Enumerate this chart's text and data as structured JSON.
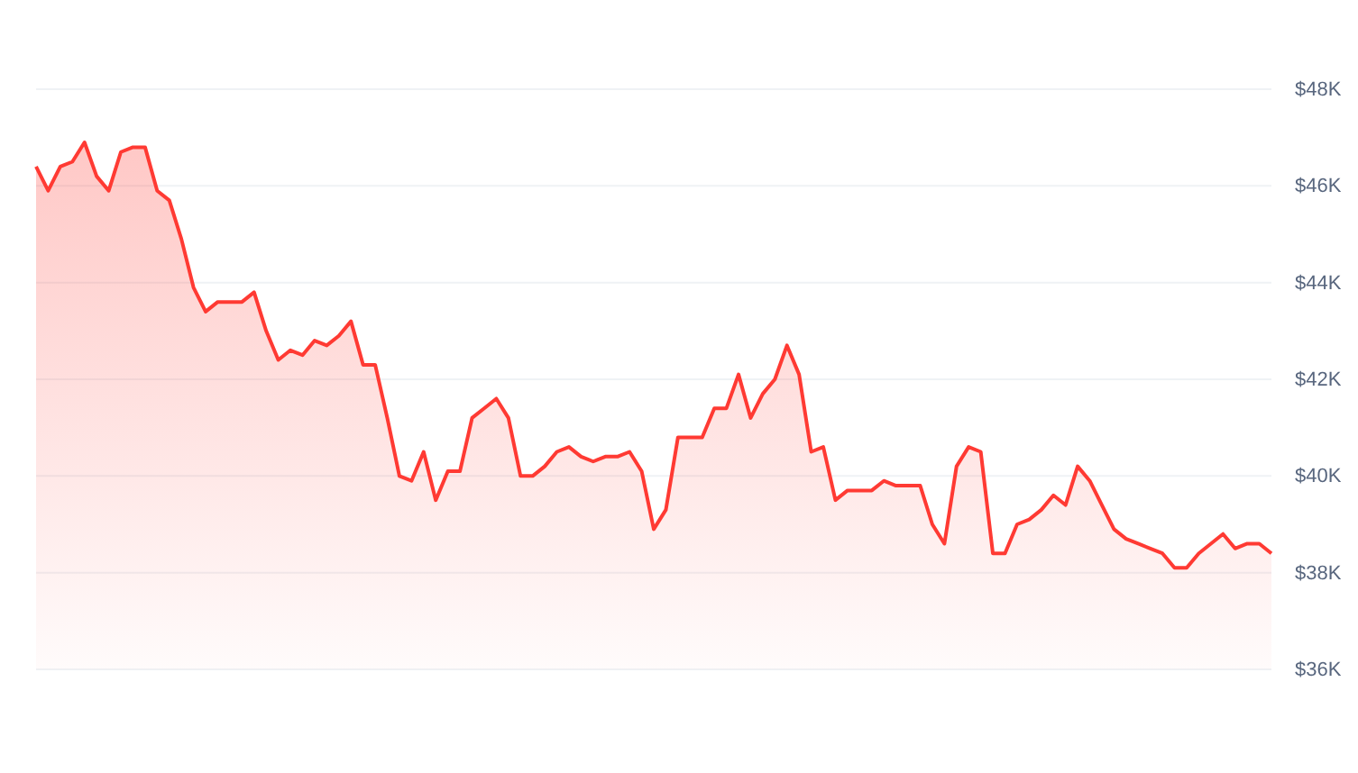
{
  "chart_data": {
    "type": "area",
    "categories": [
      null,
      null,
      null,
      null,
      null,
      null,
      null,
      null,
      null,
      null,
      null,
      null,
      null,
      null,
      null,
      null,
      null,
      null,
      null,
      null,
      null,
      null,
      null,
      null,
      null,
      null,
      null,
      null,
      null,
      null,
      null,
      null,
      null,
      null,
      null,
      null,
      null,
      null,
      null,
      null,
      null,
      null,
      null,
      null,
      null,
      null,
      null,
      null,
      null,
      null,
      null,
      null,
      null,
      null,
      null,
      null,
      null,
      null,
      null,
      null,
      null,
      null,
      null,
      null,
      null,
      null,
      null,
      null,
      null,
      null,
      null,
      null,
      null,
      null,
      null,
      null,
      null,
      null,
      null,
      null,
      null,
      null,
      null,
      null,
      null,
      null,
      null,
      null,
      null,
      null,
      null,
      null,
      null,
      null,
      null,
      null,
      null,
      null,
      null,
      null,
      null,
      null,
      null
    ],
    "series": [
      {
        "color": "#ff3a33",
        "values": [
          46.4,
          45.9,
          46.4,
          46.5,
          46.9,
          46.2,
          45.9,
          46.7,
          46.8,
          46.8,
          45.9,
          45.7,
          44.9,
          43.9,
          43.4,
          43.6,
          43.6,
          43.6,
          43.8,
          43.0,
          42.4,
          42.6,
          42.5,
          42.8,
          42.7,
          42.9,
          43.2,
          42.3,
          42.3,
          41.2,
          40.0,
          39.9,
          40.5,
          39.5,
          40.1,
          40.1,
          41.2,
          41.4,
          41.6,
          41.2,
          40.0,
          40.0,
          40.2,
          40.5,
          40.6,
          40.4,
          40.3,
          40.4,
          40.4,
          40.5,
          40.1,
          38.9,
          39.3,
          40.8,
          40.8,
          40.8,
          41.4,
          41.4,
          42.1,
          41.2,
          41.7,
          42.0,
          42.7,
          42.1,
          40.5,
          40.6,
          39.5,
          39.7,
          39.7,
          39.7,
          39.9,
          39.8,
          39.8,
          39.8,
          39.0,
          38.6,
          40.2,
          40.6,
          40.5,
          38.4,
          38.4,
          39.0,
          39.1,
          39.3,
          39.6,
          39.4,
          40.2,
          39.9,
          39.4,
          38.9,
          38.7,
          38.6,
          38.5,
          38.4,
          38.1,
          38.1,
          38.4,
          38.6,
          38.8,
          38.5,
          38.6,
          38.6,
          38.4
        ]
      }
    ],
    "ylim": [
      36,
      48
    ],
    "yticks": [
      {
        "value": 36,
        "label": "$36K"
      },
      {
        "value": 38,
        "label": "$38K"
      },
      {
        "value": 40,
        "label": "$40K"
      },
      {
        "value": 42,
        "label": "$42K"
      },
      {
        "value": 44,
        "label": "$44K"
      },
      {
        "value": 46,
        "label": "$46K"
      },
      {
        "value": 48,
        "label": "$48K"
      }
    ],
    "grid": "y",
    "tick_labels": "y"
  }
}
